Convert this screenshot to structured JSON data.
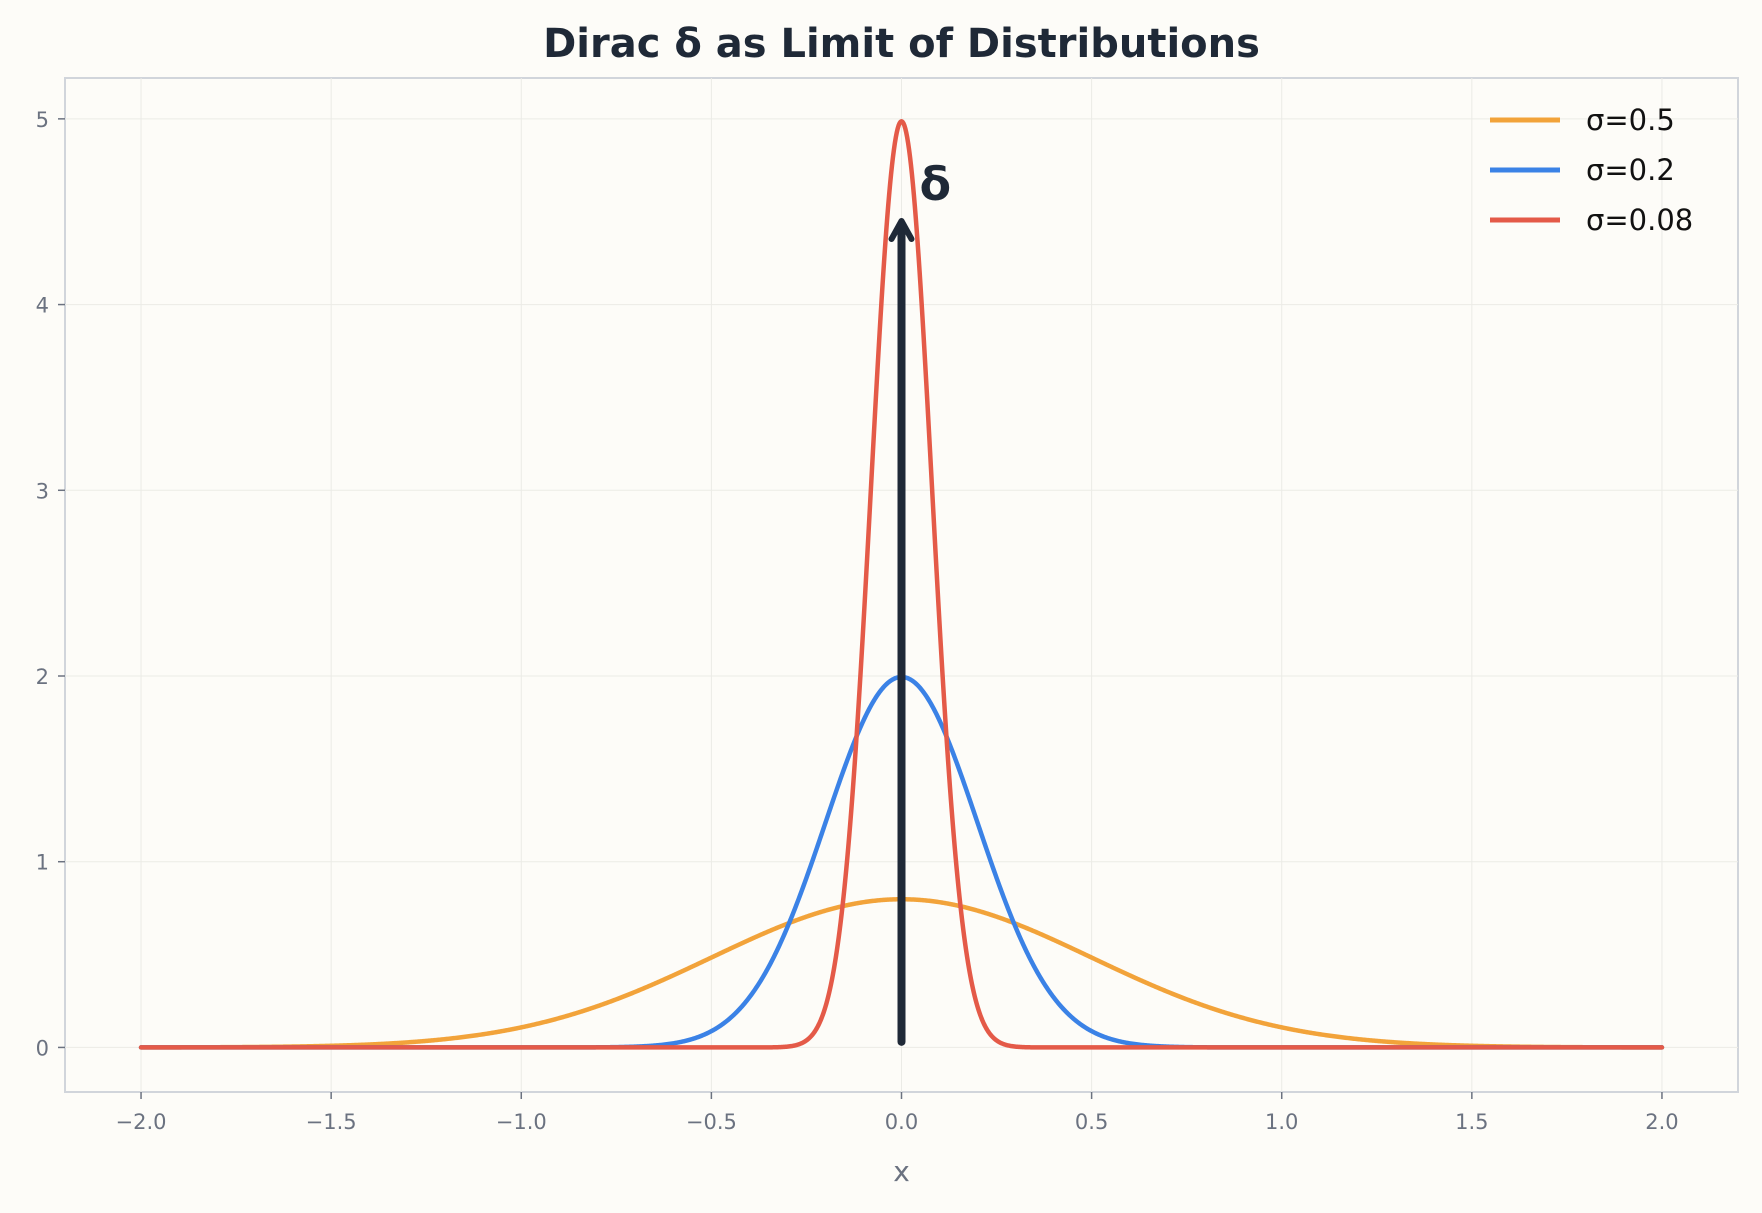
{
  "chart_data": {
    "type": "line",
    "title": "Dirac δ as Limit of Distributions",
    "xlabel": "x",
    "ylabel": "",
    "xlim": [
      -2.2,
      2.2
    ],
    "ylim": [
      -0.24,
      5.22
    ],
    "x_range": [
      -2.0,
      2.0
    ],
    "x_ticks": [
      -2.0,
      -1.5,
      -1.0,
      -0.5,
      0.0,
      0.5,
      1.0,
      1.5,
      2.0
    ],
    "x_tick_labels": [
      "−2.0",
      "−1.5",
      "−1.0",
      "−0.5",
      "0.0",
      "0.5",
      "1.0",
      "1.5",
      "2.0"
    ],
    "y_ticks": [
      0,
      1,
      2,
      3,
      4,
      5
    ],
    "y_tick_labels": [
      "0",
      "1",
      "2",
      "3",
      "4",
      "5"
    ],
    "grid": true,
    "legend_position": "top-right",
    "series": [
      {
        "name": "σ=0.5",
        "sigma": 0.5,
        "color": "#f2a33a",
        "function": "gaussian",
        "peak": 0.798
      },
      {
        "name": "σ=0.2",
        "sigma": 0.2,
        "color": "#3b82e6",
        "function": "gaussian",
        "peak": 1.995
      },
      {
        "name": "σ=0.08",
        "sigma": 0.08,
        "color": "#e45a48",
        "function": "gaussian",
        "peak": 4.987
      }
    ],
    "annotation": {
      "text": "δ",
      "arrow_x": 0.0,
      "arrow_from_y": 0.03,
      "arrow_to_y": 4.45,
      "color": "#1f2937"
    }
  }
}
